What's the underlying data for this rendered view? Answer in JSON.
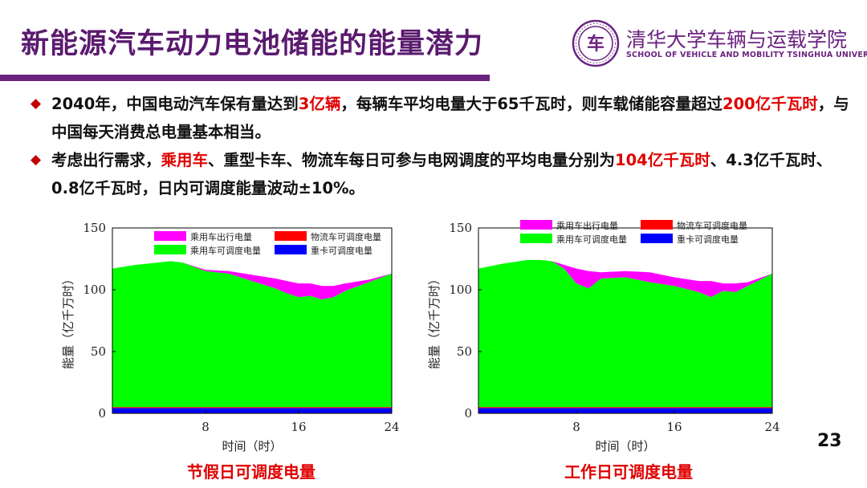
{
  "slide": {
    "title": "新能源汽车动力电池储能的能量潜力",
    "university_cn": "清华大学车辆与运载学院",
    "university_en": "SCHOOL OF VEHICLE AND MOBILITY TSINGHUA UNIVERSITY",
    "logo_text": "车",
    "page_number": "23",
    "bullet1": {
      "p1": "2040年，中国电动汽车保有量达到",
      "h1": "3亿辆",
      "p2": "，每辆车平均电量大于65千瓦时，则车载储能容量超过",
      "h2": "200亿千瓦时",
      "p3": "，与中国每天消费总电量基本相当。"
    },
    "bullet2": {
      "p1": "考虑出行需求，",
      "h1": "乘用车",
      "p2": "、重型卡车、物流车每日可参与电网调度的平均电量分别为",
      "h2": "104亿千瓦时",
      "p3": "、4.3亿千瓦时、0.8亿千瓦时，日内可调度能量波动±10%。"
    },
    "caption_left": "节假日可调度电量",
    "caption_right": "工作日可调度电量",
    "colors": {
      "title": "#5a1a6e",
      "highlight": "#e00000",
      "passenger_travel": "#ff00ff",
      "passenger_dispatch": "#00ff00",
      "logistics": "#ff0000",
      "truck": "#0000ff"
    }
  },
  "chart_data": [
    {
      "type": "area",
      "stacked": true,
      "title": "",
      "xlabel": "时间（时）",
      "ylabel": "能量（亿千万时）",
      "xlim": [
        0,
        24
      ],
      "ylim": [
        0,
        150
      ],
      "xticks": [
        8,
        16,
        24
      ],
      "yticks": [
        0,
        50,
        100,
        150
      ],
      "grid": false,
      "legend": "top",
      "x": [
        0,
        2,
        4,
        5,
        6,
        8,
        10,
        12,
        14,
        15,
        16,
        17,
        18,
        19,
        20,
        22,
        24
      ],
      "series": [
        {
          "name": "重卡可调度电量",
          "color": "#0000ff",
          "values": [
            4.3,
            4.3,
            4.3,
            4.3,
            4.3,
            4.3,
            4.3,
            4.3,
            4.3,
            4.3,
            4.3,
            4.3,
            4.3,
            4.3,
            4.3,
            4.3,
            4.3
          ]
        },
        {
          "name": "物流车可调度电量",
          "color": "#ff0000",
          "values": [
            0.8,
            0.8,
            0.8,
            0.8,
            0.8,
            0.8,
            0.8,
            0.8,
            0.8,
            0.8,
            0.8,
            0.8,
            0.8,
            0.8,
            0.8,
            0.8,
            0.8
          ]
        },
        {
          "name": "乘用车可调度电量",
          "color": "#00ff00",
          "values": [
            112,
            115,
            117,
            118,
            117,
            110,
            108,
            102,
            96,
            92,
            89,
            90,
            87,
            89,
            94,
            101,
            108
          ]
        },
        {
          "name": "乘用车出行电量",
          "color": "#ff00ff",
          "values": [
            0,
            0,
            0,
            0,
            0,
            1,
            2,
            5,
            8,
            10,
            11,
            10,
            11,
            9,
            6,
            2,
            0
          ]
        }
      ]
    },
    {
      "type": "area",
      "stacked": true,
      "title": "",
      "xlabel": "时间（时）",
      "ylabel": "能量（亿千万时）",
      "xlim": [
        0,
        24
      ],
      "ylim": [
        0,
        150
      ],
      "xticks": [
        8,
        16,
        24
      ],
      "yticks": [
        0,
        50,
        100,
        150
      ],
      "grid": false,
      "legend": "top",
      "x": [
        0,
        2,
        4,
        5,
        6,
        7,
        8,
        9,
        10,
        12,
        14,
        16,
        18,
        19,
        20,
        21,
        22,
        24
      ],
      "series": [
        {
          "name": "重卡可调度电量",
          "color": "#0000ff",
          "values": [
            4.3,
            4.3,
            4.3,
            4.3,
            4.3,
            4.3,
            4.3,
            4.3,
            4.3,
            4.3,
            4.3,
            4.3,
            4.3,
            4.3,
            4.3,
            4.3,
            4.3,
            4.3
          ]
        },
        {
          "name": "物流车可调度电量",
          "color": "#ff0000",
          "values": [
            0.8,
            0.8,
            0.8,
            0.8,
            0.8,
            0.8,
            0.8,
            0.8,
            0.8,
            0.8,
            0.8,
            0.8,
            0.8,
            0.8,
            0.8,
            0.8,
            0.8,
            0.8
          ]
        },
        {
          "name": "乘用车可调度电量",
          "color": "#00ff00",
          "values": [
            112,
            116,
            119,
            119,
            118,
            112,
            100,
            96,
            104,
            105,
            101,
            98,
            93,
            89,
            94,
            93,
            98,
            108
          ]
        },
        {
          "name": "乘用车出行电量",
          "color": "#ff00ff",
          "values": [
            0,
            0,
            0,
            0,
            0,
            3,
            12,
            14,
            5,
            5,
            8,
            7,
            9,
            13,
            6,
            7,
            3,
            0
          ]
        }
      ]
    }
  ]
}
